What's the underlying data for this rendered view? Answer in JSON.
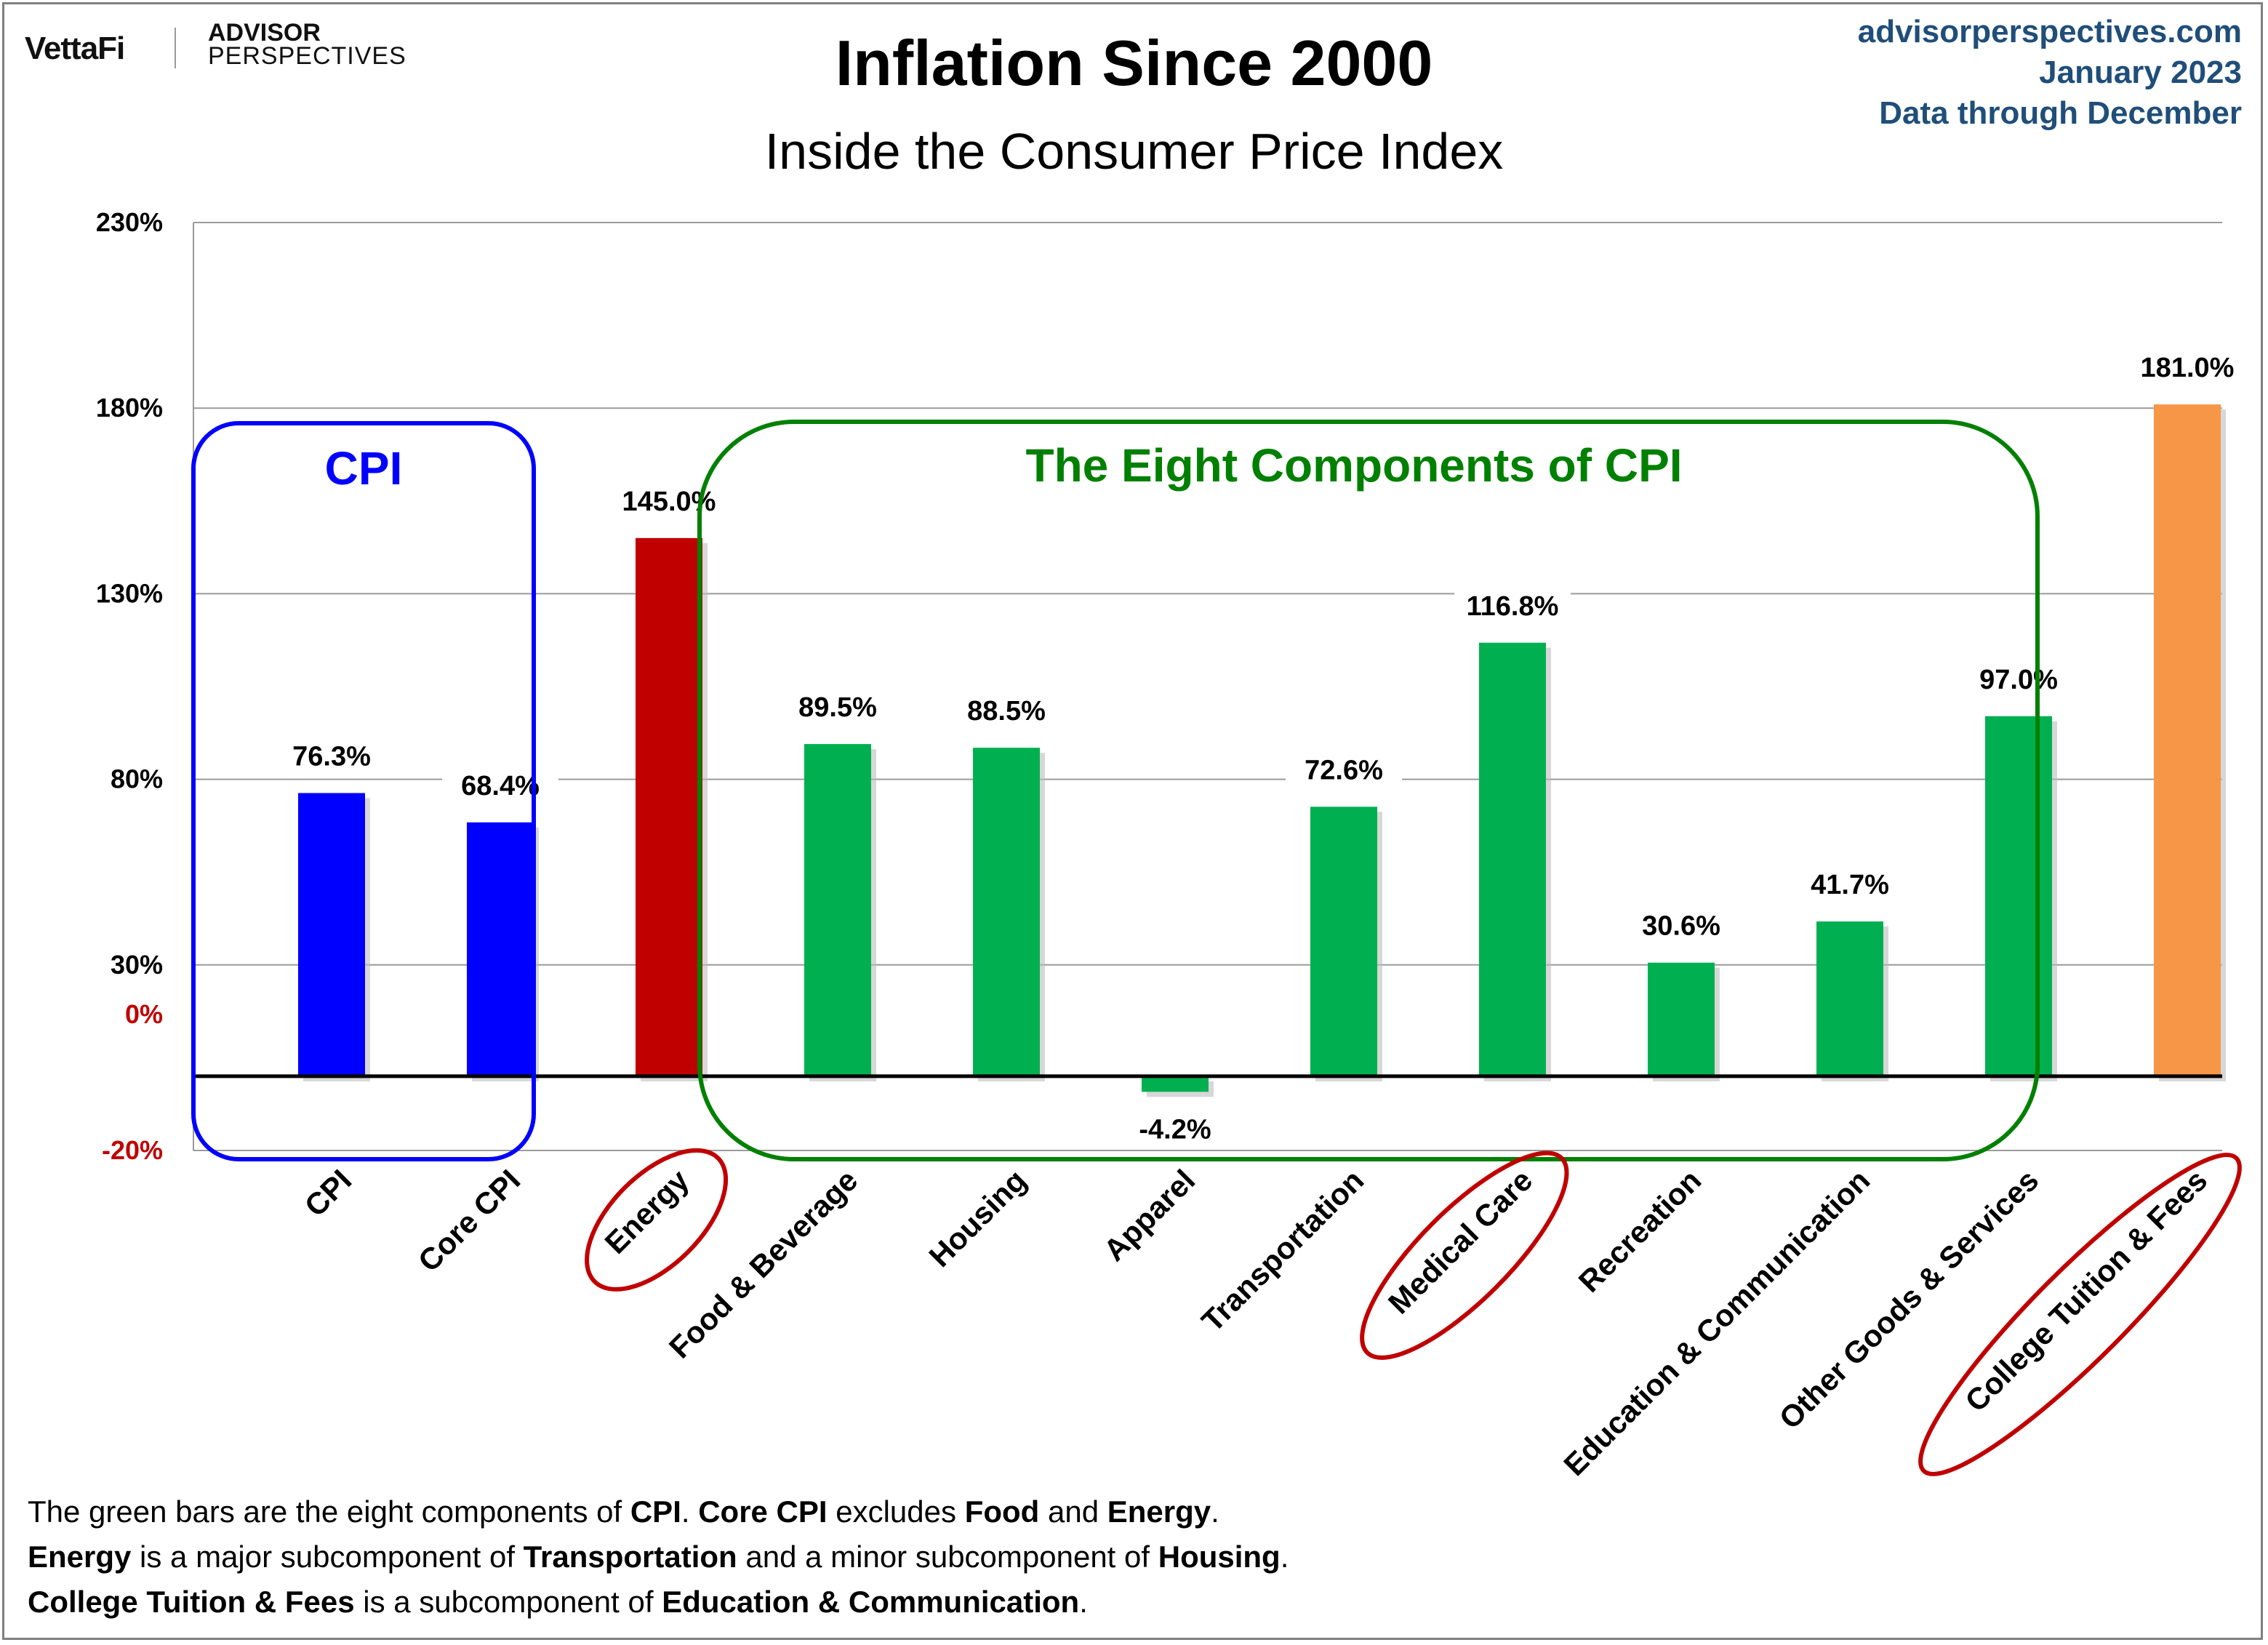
{
  "header": {
    "logo_left": "VettaFi",
    "logo_right_top": "ADVISOR",
    "logo_right_bottom": "PERSPECTIVES",
    "site": "advisorperspectives.com",
    "date": "January 2023",
    "data_through": "Data through December"
  },
  "colors": {
    "cpi": "#0000ff",
    "energy": "#c00000",
    "components": "#00b050",
    "tuition": "#f79646",
    "green_box": "#008000",
    "blue_box": "#0000ff",
    "red_ellipse": "#c00000",
    "zero_axis_label": "#c00000",
    "source_text": "#1f4e79"
  },
  "annotations": {
    "cpi_box_label": "CPI",
    "components_box_label": "The Eight Components of CPI"
  },
  "notes": {
    "line1": [
      {
        "t": "The green bars are the eight components of ",
        "b": false
      },
      {
        "t": "CPI",
        "b": true
      },
      {
        "t": ". ",
        "b": false
      },
      {
        "t": "Core CPI",
        "b": true
      },
      {
        "t": " excludes ",
        "b": false
      },
      {
        "t": "Food",
        "b": true
      },
      {
        "t": " and ",
        "b": false
      },
      {
        "t": "Energy",
        "b": true
      },
      {
        "t": ".",
        "b": false
      }
    ],
    "line2": [
      {
        "t": "Energy",
        "b": true
      },
      {
        "t": " is a major subcomponent of ",
        "b": false
      },
      {
        "t": "Transportation",
        "b": true
      },
      {
        "t": " and a minor subcomponent of ",
        "b": false
      },
      {
        "t": "Housing",
        "b": true
      },
      {
        "t": ".",
        "b": false
      }
    ],
    "line3": [
      {
        "t": "College Tuition & Fees",
        "b": true
      },
      {
        "t": " is a subcomponent of ",
        "b": false
      },
      {
        "t": "Education & Communication",
        "b": true
      },
      {
        "t": ".",
        "b": false
      }
    ]
  },
  "chart_data": {
    "type": "bar",
    "title": "Inflation Since 2000",
    "subtitle": "Inside the Consumer Price Index",
    "categories": [
      "CPI",
      "Core CPI",
      "Energy",
      "Food & Beverage",
      "Housing",
      "Apparel",
      "Transportation",
      "Medical Care",
      "Recreation",
      "Education & Communication",
      "Other Goods & Services",
      "College Tuition & Fees"
    ],
    "values": [
      76.3,
      68.4,
      145.0,
      89.5,
      88.5,
      -4.2,
      72.6,
      116.8,
      30.6,
      41.7,
      97.0,
      181.0
    ],
    "value_labels": [
      "76.3%",
      "68.4%",
      "145.0%",
      "89.5%",
      "88.5%",
      "-4.2%",
      "72.6%",
      "116.8%",
      "30.6%",
      "41.7%",
      "97.0%",
      "181.0%"
    ],
    "bar_colors": [
      "#0000ff",
      "#0000ff",
      "#c00000",
      "#00b050",
      "#00b050",
      "#00b050",
      "#00b050",
      "#00b050",
      "#00b050",
      "#00b050",
      "#00b050",
      "#f79646"
    ],
    "circled_categories": [
      "Energy",
      "Medical Care",
      "College Tuition & Fees"
    ],
    "ylim": [
      -20,
      230
    ],
    "y_ticks": [
      {
        "value": 230,
        "label": "230%",
        "color": "#000000"
      },
      {
        "value": 180,
        "label": "180%",
        "color": "#000000"
      },
      {
        "value": 130,
        "label": "130%",
        "color": "#000000"
      },
      {
        "value": 80,
        "label": "80%",
        "color": "#000000"
      },
      {
        "value": 30,
        "label": "30%",
        "color": "#000000"
      },
      {
        "value": 0,
        "label": "0%",
        "color": "#c00000"
      },
      {
        "value": -20,
        "label": "-20%",
        "color": "#c00000"
      }
    ],
    "grid": true,
    "legend": "none"
  }
}
